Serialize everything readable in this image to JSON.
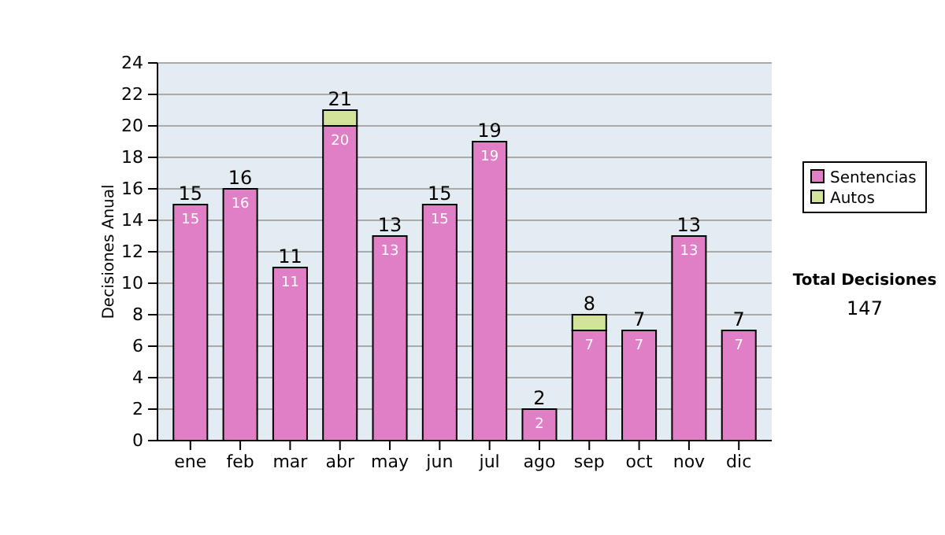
{
  "chart_data": {
    "type": "bar",
    "stacked": true,
    "ylabel": "Decisiones Anual",
    "categories": [
      "ene",
      "feb",
      "mar",
      "abr",
      "may",
      "jun",
      "jul",
      "ago",
      "sep",
      "oct",
      "nov",
      "dic"
    ],
    "series": [
      {
        "name": "Sentencias",
        "color": "#e07fc6",
        "values": [
          15,
          16,
          11,
          20,
          13,
          15,
          19,
          2,
          7,
          7,
          13,
          7
        ],
        "value_labels": [
          "15",
          "16",
          "11",
          "20",
          "13",
          "15",
          "19",
          "2",
          "7",
          "7",
          "13",
          "7"
        ]
      },
      {
        "name": "Autos",
        "color": "#d2e49a",
        "values": [
          0,
          0,
          0,
          1,
          0,
          0,
          0,
          0,
          1,
          0,
          0,
          0
        ]
      }
    ],
    "totals": [
      "15",
      "16",
      "11",
      "21",
      "13",
      "15",
      "19",
      "2",
      "8",
      "7",
      "13",
      "7"
    ],
    "ylim": [
      0,
      24
    ],
    "yticks": [
      0,
      2,
      4,
      6,
      8,
      10,
      12,
      14,
      16,
      18,
      20,
      22,
      24
    ],
    "grid": "y",
    "legend": "right",
    "annotations": [
      "Total Decisiones",
      "147"
    ]
  }
}
